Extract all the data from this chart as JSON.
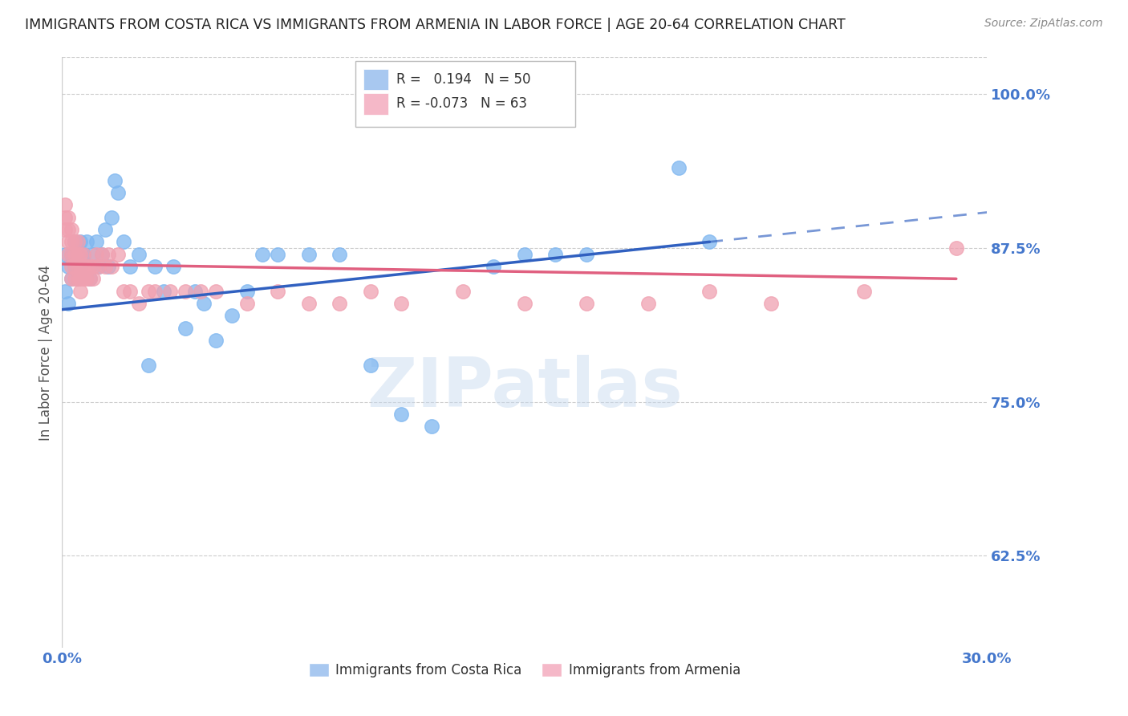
{
  "title": "IMMIGRANTS FROM COSTA RICA VS IMMIGRANTS FROM ARMENIA IN LABOR FORCE | AGE 20-64 CORRELATION CHART",
  "source": "Source: ZipAtlas.com",
  "ylabel": "In Labor Force | Age 20-64",
  "xlim": [
    0.0,
    0.3
  ],
  "ylim": [
    0.55,
    1.03
  ],
  "yticks": [
    0.625,
    0.75,
    0.875,
    1.0
  ],
  "ytick_labels": [
    "62.5%",
    "75.0%",
    "87.5%",
    "100.0%"
  ],
  "xticks": [
    0.0,
    0.05,
    0.1,
    0.15,
    0.2,
    0.25,
    0.3
  ],
  "xtick_labels": [
    "0.0%",
    "",
    "",
    "",
    "",
    "",
    "30.0%"
  ],
  "costa_rica_color": "#7EB6F0",
  "armenia_color": "#F0A0B0",
  "trend_blue": "#3060C0",
  "trend_pink": "#E06080",
  "legend_box_blue": "#A8C8F0",
  "legend_box_pink": "#F5B8C8",
  "R_costa_rica": 0.194,
  "N_costa_rica": 50,
  "R_armenia": -0.073,
  "N_armenia": 63,
  "watermark": "ZIPatlas",
  "background_color": "#ffffff",
  "grid_color": "#cccccc",
  "tick_color": "#4477cc",
  "costa_rica_x": [
    0.001,
    0.001,
    0.002,
    0.002,
    0.003,
    0.003,
    0.004,
    0.004,
    0.005,
    0.005,
    0.006,
    0.006,
    0.007,
    0.008,
    0.009,
    0.01,
    0.011,
    0.012,
    0.013,
    0.014,
    0.015,
    0.016,
    0.017,
    0.018,
    0.02,
    0.022,
    0.025,
    0.028,
    0.03,
    0.033,
    0.036,
    0.04,
    0.043,
    0.046,
    0.05,
    0.055,
    0.06,
    0.065,
    0.07,
    0.08,
    0.09,
    0.1,
    0.11,
    0.12,
    0.14,
    0.15,
    0.16,
    0.17,
    0.2,
    0.21
  ],
  "costa_rica_y": [
    0.87,
    0.84,
    0.86,
    0.83,
    0.87,
    0.85,
    0.88,
    0.86,
    0.87,
    0.85,
    0.88,
    0.86,
    0.87,
    0.88,
    0.85,
    0.87,
    0.88,
    0.86,
    0.87,
    0.89,
    0.86,
    0.9,
    0.93,
    0.92,
    0.88,
    0.86,
    0.87,
    0.78,
    0.86,
    0.84,
    0.86,
    0.81,
    0.84,
    0.83,
    0.8,
    0.82,
    0.84,
    0.87,
    0.87,
    0.87,
    0.87,
    0.78,
    0.74,
    0.73,
    0.86,
    0.87,
    0.87,
    0.87,
    0.94,
    0.88
  ],
  "armenia_x": [
    0.001,
    0.001,
    0.001,
    0.002,
    0.002,
    0.002,
    0.002,
    0.003,
    0.003,
    0.003,
    0.003,
    0.003,
    0.004,
    0.004,
    0.004,
    0.004,
    0.005,
    0.005,
    0.005,
    0.005,
    0.006,
    0.006,
    0.006,
    0.006,
    0.007,
    0.007,
    0.007,
    0.008,
    0.008,
    0.009,
    0.009,
    0.01,
    0.01,
    0.011,
    0.012,
    0.013,
    0.014,
    0.015,
    0.016,
    0.018,
    0.02,
    0.022,
    0.025,
    0.028,
    0.03,
    0.035,
    0.04,
    0.045,
    0.05,
    0.06,
    0.07,
    0.08,
    0.09,
    0.1,
    0.11,
    0.13,
    0.15,
    0.17,
    0.19,
    0.21,
    0.23,
    0.26,
    0.29
  ],
  "armenia_y": [
    0.91,
    0.9,
    0.89,
    0.9,
    0.89,
    0.88,
    0.87,
    0.89,
    0.88,
    0.87,
    0.86,
    0.85,
    0.88,
    0.87,
    0.86,
    0.85,
    0.88,
    0.87,
    0.86,
    0.85,
    0.87,
    0.86,
    0.85,
    0.84,
    0.87,
    0.86,
    0.85,
    0.86,
    0.85,
    0.86,
    0.85,
    0.86,
    0.85,
    0.87,
    0.86,
    0.87,
    0.86,
    0.87,
    0.86,
    0.87,
    0.84,
    0.84,
    0.83,
    0.84,
    0.84,
    0.84,
    0.84,
    0.84,
    0.84,
    0.83,
    0.84,
    0.83,
    0.83,
    0.84,
    0.83,
    0.84,
    0.83,
    0.83,
    0.83,
    0.84,
    0.83,
    0.84,
    0.875
  ],
  "cr_trend_x0": 0.0,
  "cr_trend_y0": 0.825,
  "cr_trend_x1": 0.21,
  "cr_trend_y1": 0.88,
  "cr_trend_x1_dashed": 0.3,
  "cr_trend_y1_dashed": 0.904,
  "ar_trend_x0": 0.0,
  "ar_trend_y0": 0.862,
  "ar_trend_x1": 0.29,
  "ar_trend_y1": 0.85
}
